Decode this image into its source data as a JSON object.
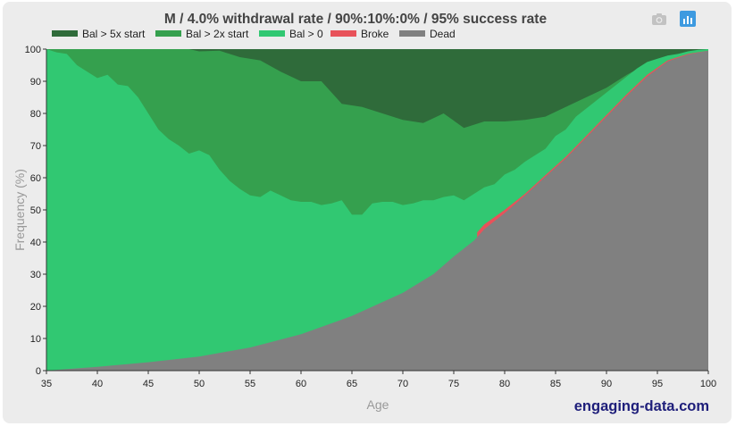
{
  "chart_data": {
    "type": "area",
    "title": "M / 4.0% withdrawal rate / 90%:10%:0% / 95% success rate",
    "xlabel": "Age",
    "ylabel": "Frequency (%)",
    "xlim": [
      35,
      100
    ],
    "ylim": [
      0,
      100
    ],
    "x_ticks": [
      35,
      40,
      45,
      50,
      55,
      60,
      65,
      70,
      75,
      80,
      85,
      90,
      95,
      100
    ],
    "y_ticks": [
      0,
      10,
      20,
      30,
      40,
      50,
      60,
      70,
      80,
      90,
      100
    ],
    "legend_position": "top-left",
    "stacking": "cumulative boundaries (percent of simulations at or below each state)",
    "series": [
      {
        "name": "Bal > 5x start",
        "color": "#2f6b3a",
        "boundary": "fills from the 'Bal > 2x start' boundary up to 100"
      },
      {
        "name": "Bal > 2x start",
        "color": "#35a04e",
        "upper": [
          [
            35,
            100
          ],
          [
            45,
            100
          ],
          [
            49,
            100
          ],
          [
            50,
            99.3
          ],
          [
            52,
            99.5
          ],
          [
            54,
            97.5
          ],
          [
            56,
            96.5
          ],
          [
            58,
            93
          ],
          [
            60,
            90
          ],
          [
            62,
            90
          ],
          [
            64,
            83
          ],
          [
            66,
            82
          ],
          [
            68,
            80
          ],
          [
            70,
            78
          ],
          [
            72,
            77
          ],
          [
            74,
            80
          ],
          [
            76,
            75.5
          ],
          [
            78,
            77.5
          ],
          [
            80,
            77.5
          ],
          [
            82,
            78
          ],
          [
            84,
            79
          ],
          [
            86,
            82
          ],
          [
            88,
            85
          ],
          [
            90,
            88
          ],
          [
            92,
            92
          ],
          [
            94,
            95.5
          ],
          [
            96,
            97.5
          ],
          [
            98,
            99
          ],
          [
            100,
            100
          ]
        ]
      },
      {
        "name": "Bal > 0",
        "color": "#31c872",
        "upper": [
          [
            35,
            100
          ],
          [
            36,
            99
          ],
          [
            37,
            98.5
          ],
          [
            38,
            95
          ],
          [
            39,
            93
          ],
          [
            40,
            91
          ],
          [
            41,
            92
          ],
          [
            42,
            89
          ],
          [
            43,
            88.5
          ],
          [
            44,
            85
          ],
          [
            45,
            80
          ],
          [
            46,
            75
          ],
          [
            47,
            72
          ],
          [
            48,
            70
          ],
          [
            49,
            67.5
          ],
          [
            50,
            68.5
          ],
          [
            51,
            67
          ],
          [
            52,
            62.5
          ],
          [
            53,
            59
          ],
          [
            54,
            56.5
          ],
          [
            55,
            54.5
          ],
          [
            56,
            54
          ],
          [
            57,
            56
          ],
          [
            58,
            54.5
          ],
          [
            59,
            53
          ],
          [
            60,
            52.5
          ],
          [
            61,
            52.5
          ],
          [
            62,
            51.5
          ],
          [
            63,
            52
          ],
          [
            64,
            53
          ],
          [
            65,
            48.5
          ],
          [
            66,
            48.5
          ],
          [
            67,
            52
          ],
          [
            68,
            52.5
          ],
          [
            69,
            52.5
          ],
          [
            70,
            51.5
          ],
          [
            71,
            52
          ],
          [
            72,
            53
          ],
          [
            73,
            53
          ],
          [
            74,
            54
          ],
          [
            75,
            54.5
          ],
          [
            76,
            53
          ],
          [
            77,
            55
          ],
          [
            78,
            57
          ],
          [
            79,
            58
          ],
          [
            80,
            61
          ],
          [
            81,
            62.5
          ],
          [
            82,
            65
          ],
          [
            83,
            67
          ],
          [
            84,
            69
          ],
          [
            85,
            73
          ],
          [
            86,
            75
          ],
          [
            87,
            79
          ],
          [
            88,
            81.5
          ],
          [
            89,
            84
          ],
          [
            90,
            86.5
          ],
          [
            91,
            89
          ],
          [
            92,
            91.5
          ],
          [
            93,
            94
          ],
          [
            94,
            96
          ],
          [
            95,
            97
          ],
          [
            96,
            98
          ],
          [
            97,
            98.5
          ],
          [
            98,
            99.3
          ],
          [
            99,
            99.8
          ],
          [
            100,
            100
          ]
        ]
      },
      {
        "name": "Broke",
        "color": "#e8525a",
        "upper": [
          [
            77.3,
            43
          ],
          [
            78,
            45.5
          ],
          [
            80,
            50
          ],
          [
            82,
            55
          ],
          [
            84,
            60.8
          ],
          [
            86,
            66.5
          ],
          [
            88,
            73
          ],
          [
            90,
            79.5
          ],
          [
            92,
            86
          ],
          [
            94,
            92
          ],
          [
            96,
            96.5
          ],
          [
            98,
            98.5
          ],
          [
            100,
            99.5
          ]
        ]
      },
      {
        "name": "Dead",
        "color": "#808080",
        "upper": [
          [
            35,
            0
          ],
          [
            40,
            1.2
          ],
          [
            45,
            2.6
          ],
          [
            50,
            4.4
          ],
          [
            55,
            7.2
          ],
          [
            60,
            11.3
          ],
          [
            65,
            17
          ],
          [
            70,
            24.2
          ],
          [
            73,
            30
          ],
          [
            75,
            35.5
          ],
          [
            77,
            40.5
          ],
          [
            78,
            44
          ],
          [
            80,
            49
          ],
          [
            82,
            54.5
          ],
          [
            84,
            60.3
          ],
          [
            86,
            66
          ],
          [
            88,
            72.5
          ],
          [
            90,
            79
          ],
          [
            92,
            85.5
          ],
          [
            94,
            91.5
          ],
          [
            96,
            96.2
          ],
          [
            98,
            98.3
          ],
          [
            100,
            99.5
          ]
        ]
      }
    ]
  },
  "watermark": "engaging-data.com",
  "toolbar": {
    "icons": [
      "camera-icon",
      "bar-chart-icon"
    ]
  }
}
